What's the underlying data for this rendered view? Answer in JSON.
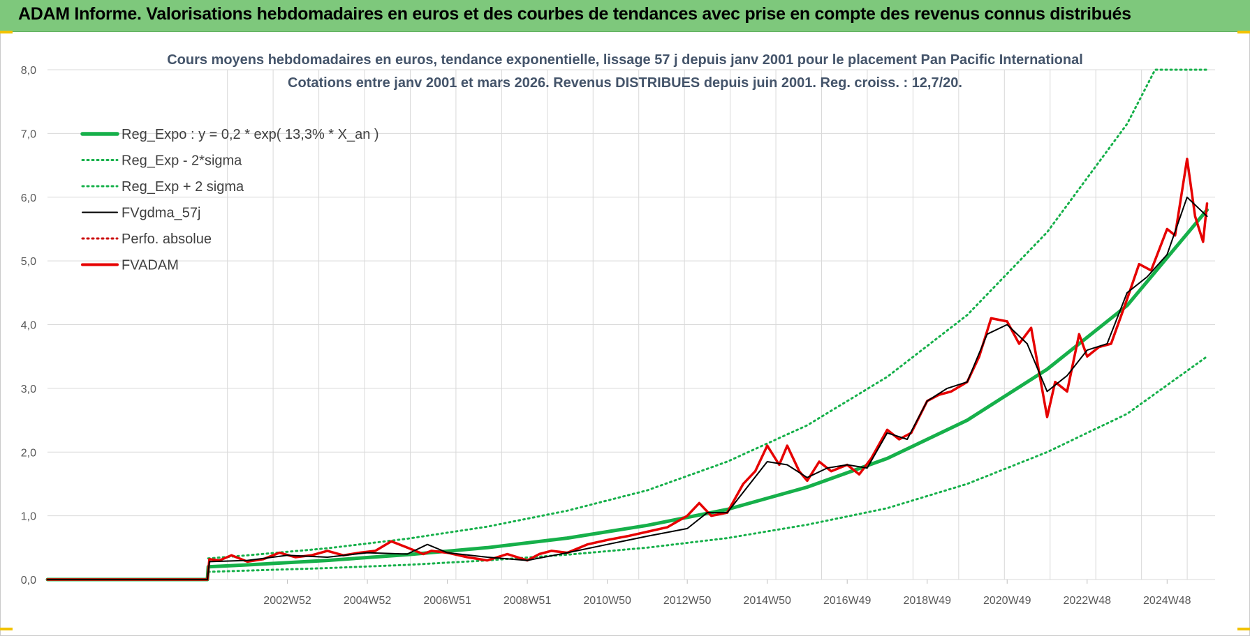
{
  "banner": {
    "title": "ADAM Informe. Valorisations hebdomadaires en euros et des courbes de tendances avec prise en compte des revenus connus distribués"
  },
  "colors": {
    "banner_bg": "#7ec87c",
    "trend_green": "#16b04a",
    "sigma_green": "#16b04a",
    "smoothed_black": "#000000",
    "fvadam_red": "#e60000",
    "perfo_red": "#cc0000",
    "grid": "#d9d9d9",
    "axis_text": "#595959",
    "title_text": "#44546a"
  },
  "chart_data": {
    "type": "line",
    "title": "Cours moyens hebdomadaires en euros, tendance exponentielle, lissage 57 j depuis janv 2001  pour le placement Pan Pacific International",
    "subtitle": "Cotations entre janv 2001 et mars 2026. Revenus DISTRIBUES depuis juin 2001. Reg.  croiss. : 12,7/20.",
    "xlabel": "",
    "ylabel": "",
    "ylim": [
      0,
      8
    ],
    "yticks": [
      "0,0",
      "1,0",
      "2,0",
      "3,0",
      "4,0",
      "5,0",
      "6,0",
      "7,0",
      "8,0"
    ],
    "xlim": [
      1997,
      2026.2
    ],
    "xticks": [
      {
        "label": "2002W52",
        "x": 2003.0
      },
      {
        "label": "2004W52",
        "x": 2005.0
      },
      {
        "label": "2006W51",
        "x": 2007.0
      },
      {
        "label": "2008W51",
        "x": 2009.0
      },
      {
        "label": "2010W50",
        "x": 2011.0
      },
      {
        "label": "2012W50",
        "x": 2013.0
      },
      {
        "label": "2014W50",
        "x": 2015.0
      },
      {
        "label": "2016W49",
        "x": 2017.0
      },
      {
        "label": "2018W49",
        "x": 2019.0
      },
      {
        "label": "2020W49",
        "x": 2021.0
      },
      {
        "label": "2022W48",
        "x": 2023.0
      },
      {
        "label": "2024W48",
        "x": 2025.0
      }
    ],
    "grid": true,
    "legend_position": "top-left",
    "series": [
      {
        "name": "Reg_Expo : y = 0,2 * exp( 13,3% *  X_an )",
        "style": "solid-thick",
        "color": "#16b04a",
        "x": [
          1997,
          2001.0,
          2001.02,
          2002,
          2004,
          2006,
          2008,
          2010,
          2012,
          2014,
          2016,
          2018,
          2020,
          2022,
          2024,
          2026
        ],
        "y": [
          0,
          0,
          0.2,
          0.23,
          0.3,
          0.39,
          0.5,
          0.65,
          0.85,
          1.1,
          1.45,
          1.9,
          2.5,
          3.3,
          4.3,
          5.8
        ]
      },
      {
        "name": "Reg_Exp - 2*sigma",
        "style": "dotted",
        "color": "#16b04a",
        "x": [
          2001.02,
          2002,
          2004,
          2006,
          2008,
          2010,
          2012,
          2014,
          2016,
          2018,
          2020,
          2022,
          2024,
          2026
        ],
        "y": [
          0.12,
          0.14,
          0.18,
          0.23,
          0.3,
          0.39,
          0.5,
          0.65,
          0.86,
          1.12,
          1.5,
          2.0,
          2.6,
          3.5
        ]
      },
      {
        "name": "Reg_Exp + 2 sigma",
        "style": "dotted",
        "color": "#16b04a",
        "x": [
          2001.02,
          2002,
          2004,
          2006,
          2008,
          2010,
          2012,
          2014,
          2016,
          2018,
          2020,
          2022,
          2024,
          2024.7,
          2026
        ],
        "y": [
          0.33,
          0.38,
          0.49,
          0.64,
          0.83,
          1.08,
          1.4,
          1.85,
          2.42,
          3.18,
          4.15,
          5.45,
          7.15,
          8.0,
          8.0
        ]
      },
      {
        "name": "FVgdma_57j",
        "style": "solid",
        "color": "#000000",
        "x": [
          1997,
          2001.0,
          2001.05,
          2002,
          2003,
          2004,
          2005,
          2006,
          2006.5,
          2007,
          2008,
          2009,
          2010,
          2011,
          2012,
          2013,
          2013.5,
          2014,
          2015,
          2015.5,
          2016,
          2016.5,
          2017,
          2017.5,
          2018,
          2018.5,
          2019,
          2019.5,
          2020,
          2020.5,
          2021,
          2021.5,
          2022,
          2022.5,
          2023,
          2023.5,
          2024,
          2024.5,
          2025,
          2025.5,
          2026
        ],
        "y": [
          0,
          0,
          0.28,
          0.3,
          0.38,
          0.35,
          0.42,
          0.4,
          0.55,
          0.42,
          0.35,
          0.3,
          0.42,
          0.55,
          0.68,
          0.8,
          1.05,
          1.05,
          1.85,
          1.8,
          1.6,
          1.75,
          1.8,
          1.75,
          2.3,
          2.2,
          2.8,
          3.0,
          3.1,
          3.85,
          4.0,
          3.7,
          2.95,
          3.2,
          3.6,
          3.7,
          4.5,
          4.75,
          5.1,
          6.0,
          5.7
        ]
      },
      {
        "name": "Perfo. absolue",
        "style": "dotted",
        "color": "#cc0000",
        "x": [],
        "y": []
      },
      {
        "name": "FVADAM",
        "style": "solid-thick",
        "color": "#e60000",
        "x": [
          1997,
          2001.0,
          2001.05,
          2001.3,
          2001.6,
          2002,
          2002.4,
          2002.8,
          2003.2,
          2003.6,
          2004,
          2004.4,
          2004.8,
          2005.2,
          2005.6,
          2006,
          2006.4,
          2006.6,
          2007,
          2007.5,
          2008,
          2008.5,
          2009,
          2009.3,
          2009.6,
          2010,
          2010.5,
          2011,
          2011.5,
          2012,
          2012.5,
          2013,
          2013.3,
          2013.6,
          2014,
          2014.4,
          2014.7,
          2015,
          2015.3,
          2015.5,
          2015.8,
          2016,
          2016.3,
          2016.6,
          2017,
          2017.3,
          2017.6,
          2018,
          2018.3,
          2018.6,
          2019,
          2019.3,
          2019.6,
          2020,
          2020.3,
          2020.6,
          2021,
          2021.3,
          2021.6,
          2022,
          2022.2,
          2022.5,
          2022.8,
          2023,
          2023.3,
          2023.6,
          2024,
          2024.3,
          2024.6,
          2025,
          2025.2,
          2025.5,
          2025.7,
          2025.9,
          2026
        ],
        "y": [
          0,
          0,
          0.32,
          0.3,
          0.38,
          0.28,
          0.32,
          0.42,
          0.35,
          0.38,
          0.45,
          0.38,
          0.42,
          0.45,
          0.6,
          0.5,
          0.4,
          0.45,
          0.42,
          0.35,
          0.3,
          0.4,
          0.3,
          0.4,
          0.45,
          0.42,
          0.55,
          0.62,
          0.68,
          0.75,
          0.82,
          1.0,
          1.2,
          1.0,
          1.05,
          1.5,
          1.7,
          2.1,
          1.8,
          2.1,
          1.7,
          1.55,
          1.85,
          1.7,
          1.8,
          1.65,
          1.9,
          2.35,
          2.2,
          2.3,
          2.8,
          2.9,
          2.95,
          3.1,
          3.5,
          4.1,
          4.05,
          3.7,
          3.95,
          2.55,
          3.1,
          2.95,
          3.85,
          3.5,
          3.65,
          3.7,
          4.4,
          4.95,
          4.85,
          5.5,
          5.4,
          6.6,
          5.7,
          5.3,
          5.9
        ]
      }
    ]
  }
}
